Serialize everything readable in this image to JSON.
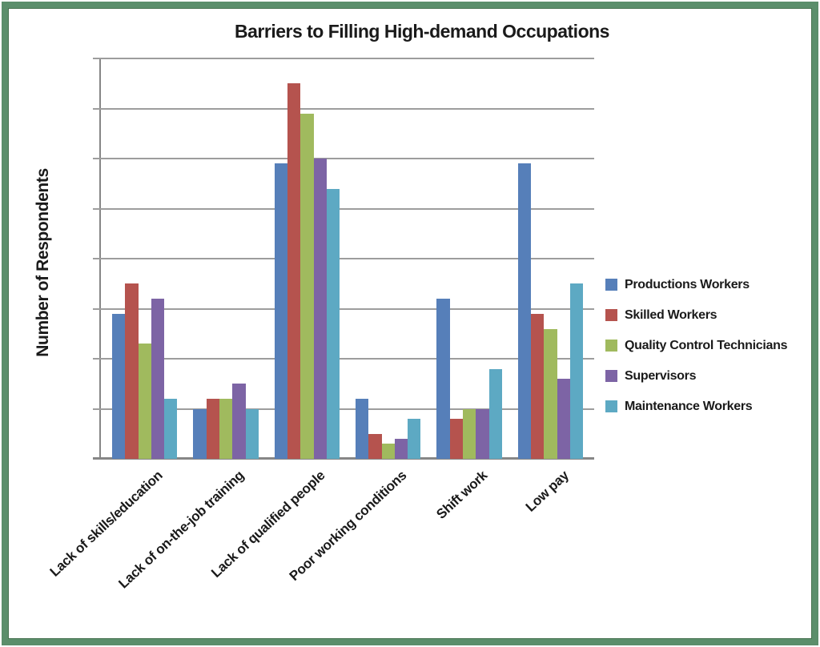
{
  "chart_data": {
    "type": "bar",
    "title": "Barriers to Filling High-demand Occupations",
    "xlabel": "",
    "ylabel": "Number of Respondents",
    "categories": [
      "Lack of skills/education",
      "Lack of on-the-job training",
      "Lack of qualified people",
      "Poor working conditions",
      "Shift work",
      "Low pay"
    ],
    "series": [
      {
        "name": "Productions Workers",
        "color": "#567FB9",
        "values": [
          2.9,
          1.0,
          5.9,
          1.2,
          3.2,
          5.9
        ]
      },
      {
        "name": "Skilled Workers",
        "color": "#B5534E",
        "values": [
          3.5,
          1.2,
          7.5,
          0.5,
          0.8,
          2.9
        ]
      },
      {
        "name": "Quality Control Technicians",
        "color": "#A0BA5E",
        "values": [
          2.3,
          1.2,
          6.9,
          0.3,
          1.0,
          2.6
        ]
      },
      {
        "name": "Supervisors",
        "color": "#7D64A5",
        "values": [
          3.2,
          1.5,
          6.0,
          0.4,
          1.0,
          1.6
        ]
      },
      {
        "name": "Maintenance Workers",
        "color": "#5DA9C3",
        "values": [
          1.2,
          1.0,
          5.4,
          0.8,
          1.8,
          3.5
        ]
      }
    ],
    "ylim": [
      0,
      8
    ],
    "y_gridline_interval": 1,
    "y_tick_labels": "none (gridlines are unlabeled)",
    "grid": true,
    "legend_position": "right",
    "note": "values estimated in gridline units; y axis shows no numeric tick labels"
  },
  "style": {
    "frame_border_color": "#5B8E6B",
    "grid_color": "#9D9D9D",
    "axis_color": "#868686",
    "background": "#FFFFFF",
    "text_color": "#1A1A1A"
  }
}
